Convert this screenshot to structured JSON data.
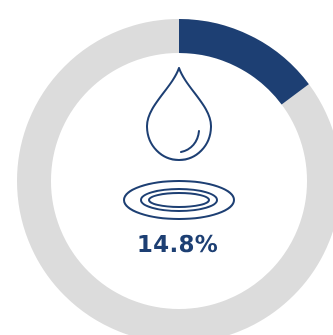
{
  "chart_data": {
    "type": "pie",
    "variant": "donut",
    "values": [
      14.8,
      85.2
    ],
    "value_label": "14.8%",
    "start_angle": "12 o'clock",
    "direction": "clockwise"
  },
  "colors": {
    "accent": "#1d3f73",
    "track": "#dcdcdc",
    "background": "#ffffff"
  },
  "icons": {
    "drop": "water-drop-icon",
    "puddle": "puddle-icon"
  }
}
